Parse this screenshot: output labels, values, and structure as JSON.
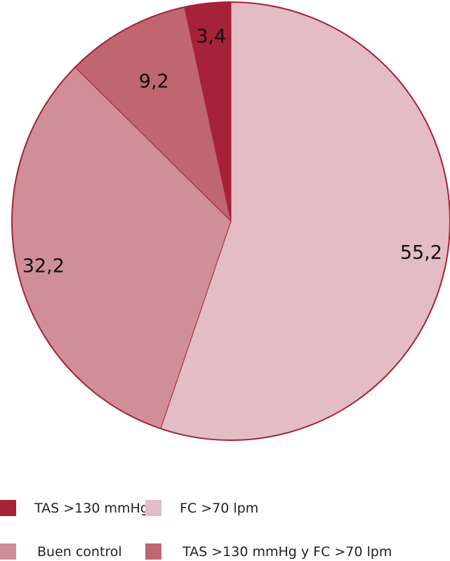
{
  "chart_data": {
    "type": "pie",
    "slices": [
      {
        "label": "FC >70 lpm",
        "value": 55.2,
        "display": "55,2",
        "color": "#e4bcc3"
      },
      {
        "label": "Buen control",
        "value": 32.2,
        "display": "32,2",
        "color": "#d08e99"
      },
      {
        "label": "TAS >130 mmHg y FC >70 lpm",
        "value": 9.2,
        "display": "9,2",
        "color": "#c06671"
      },
      {
        "label": "TAS >130 mmHg",
        "value": 3.4,
        "display": "3,4",
        "color": "#a52238"
      }
    ],
    "border_color": "#a52238",
    "legend_position": "bottom",
    "legend": [
      {
        "label": "TAS >130 mmHg",
        "color": "#a52238"
      },
      {
        "label": "FC >70 lpm",
        "color": "#e4bcc3"
      },
      {
        "label": "Buen control",
        "color": "#d08e99"
      },
      {
        "label": "TAS >130 mmHg y FC >70 lpm",
        "color": "#c06671"
      }
    ]
  }
}
